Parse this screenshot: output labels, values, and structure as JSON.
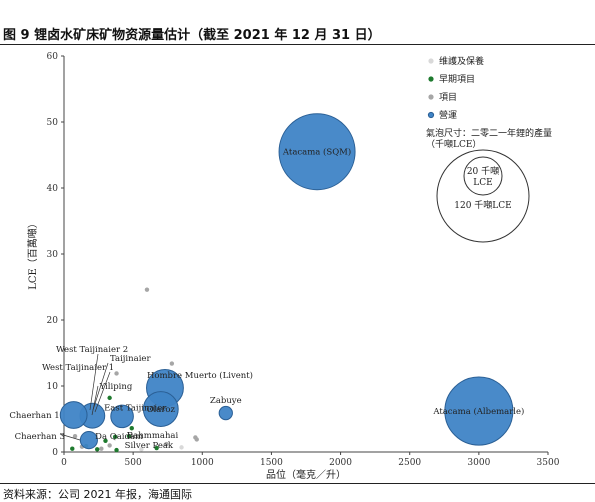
{
  "header": {
    "title": "图 9 锂卤水矿床矿物资源量估计（截至 2021 年 12 月 31 日）"
  },
  "footer": {
    "source": "资料来源：公司 2021 年报，海通国际"
  },
  "chart_data": {
    "type": "scatter",
    "title": "",
    "xlabel": "品位（毫克／升）",
    "ylabel": "LCE（百萬噸）",
    "xlim": [
      0,
      3500
    ],
    "ylim": [
      0,
      60
    ],
    "xticks": [
      0,
      500,
      1000,
      1500,
      2000,
      2500,
      3000,
      3500
    ],
    "yticks": [
      0,
      10,
      20,
      30,
      40,
      50,
      60
    ],
    "grid": false,
    "legend": {
      "placement": "top-right",
      "entries": [
        {
          "name": "维護及保養",
          "color": "#d9d9d9"
        },
        {
          "name": "早期項目",
          "color": "#1e7a2e"
        },
        {
          "name": "項目",
          "color": "#a6a6a6"
        },
        {
          "name": "營運",
          "color": "#3f84c6"
        }
      ],
      "size_note": "氣泡尺寸：二零二一年鋰的產量（千噸LCE）",
      "size_ref_small": "20 千噸 LCE",
      "size_ref_large": "120 千噸LCE"
    },
    "series": [
      {
        "name": "營運",
        "color": "#3f84c6",
        "points": [
          {
            "label": "Atacama (SQM)",
            "x": 1830,
            "y": 45.5,
            "size": 120
          },
          {
            "label": "Atacama (Albemarle)",
            "x": 3000,
            "y": 6.2,
            "size": 95
          },
          {
            "label": "Hombre Muerto (Livent)",
            "x": 730,
            "y": 9.7,
            "size": 25
          },
          {
            "label": "Olaroz",
            "x": 700,
            "y": 6.5,
            "size": 22
          },
          {
            "label": "East Taijinaier",
            "x": 420,
            "y": 5.4,
            "size": 8
          },
          {
            "label": "Zabuye",
            "x": 1170,
            "y": 5.9,
            "size": 2
          },
          {
            "label": "Qarhan",
            "x": 205,
            "y": 5.5,
            "size": 10
          },
          {
            "label": "Chaerhan 1",
            "x": 70,
            "y": 5.6,
            "size": 12
          },
          {
            "label": "Chaerhan 3",
            "x": 180,
            "y": 1.8,
            "size": 4
          }
        ]
      },
      {
        "name": "早期項目",
        "color": "#1e7a2e",
        "points": [
          {
            "label": "Yiliping",
            "x": 330,
            "y": 8.2,
            "size": 1
          },
          {
            "label": "Da Qaidam",
            "x": 370,
            "y": 2.3,
            "size": 1
          },
          {
            "label": "Bahmmahai",
            "x": 470,
            "y": 2.4,
            "size": 1
          },
          {
            "label": "Silver Peak",
            "x": 670,
            "y": 0.6,
            "size": 1
          },
          {
            "label": "",
            "x": 490,
            "y": 3.6,
            "size": 1
          },
          {
            "label": "",
            "x": 300,
            "y": 1.7,
            "size": 1
          },
          {
            "label": "",
            "x": 160,
            "y": 0.9,
            "size": 1
          },
          {
            "label": "",
            "x": 60,
            "y": 0.5,
            "size": 1
          },
          {
            "label": "",
            "x": 380,
            "y": 0.3,
            "size": 1
          },
          {
            "label": "",
            "x": 240,
            "y": 0.4,
            "size": 1
          }
        ]
      },
      {
        "name": "項目",
        "color": "#a6a6a6",
        "points": [
          {
            "label": "",
            "x": 600,
            "y": 24.6,
            "size": 1
          },
          {
            "label": "",
            "x": 780,
            "y": 13.4,
            "size": 1
          },
          {
            "label": "",
            "x": 380,
            "y": 11.9,
            "size": 1
          },
          {
            "label": "",
            "x": 950,
            "y": 2.2,
            "size": 1
          },
          {
            "label": "",
            "x": 960,
            "y": 1.9,
            "size": 1
          },
          {
            "label": "",
            "x": 740,
            "y": 1.2,
            "size": 1
          },
          {
            "label": "",
            "x": 330,
            "y": 1.0,
            "size": 1
          },
          {
            "label": "",
            "x": 80,
            "y": 2.4,
            "size": 1
          },
          {
            "label": "",
            "x": 130,
            "y": 0.8,
            "size": 1
          },
          {
            "label": "",
            "x": 270,
            "y": 0.5,
            "size": 1
          }
        ]
      },
      {
        "name": "维護及保養",
        "color": "#d9d9d9",
        "points": [
          {
            "label": "",
            "x": 560,
            "y": 0.4,
            "size": 1
          },
          {
            "label": "",
            "x": 850,
            "y": 0.7,
            "size": 1
          }
        ]
      }
    ],
    "annotations": [
      {
        "text": "West Taijinaier 2",
        "x": 190,
        "y": 8.0
      },
      {
        "text": "Taijinaier",
        "x": 210,
        "y": 7.0
      },
      {
        "text": "West Taijinaier 1",
        "x": 190,
        "y": 7.2
      }
    ]
  }
}
